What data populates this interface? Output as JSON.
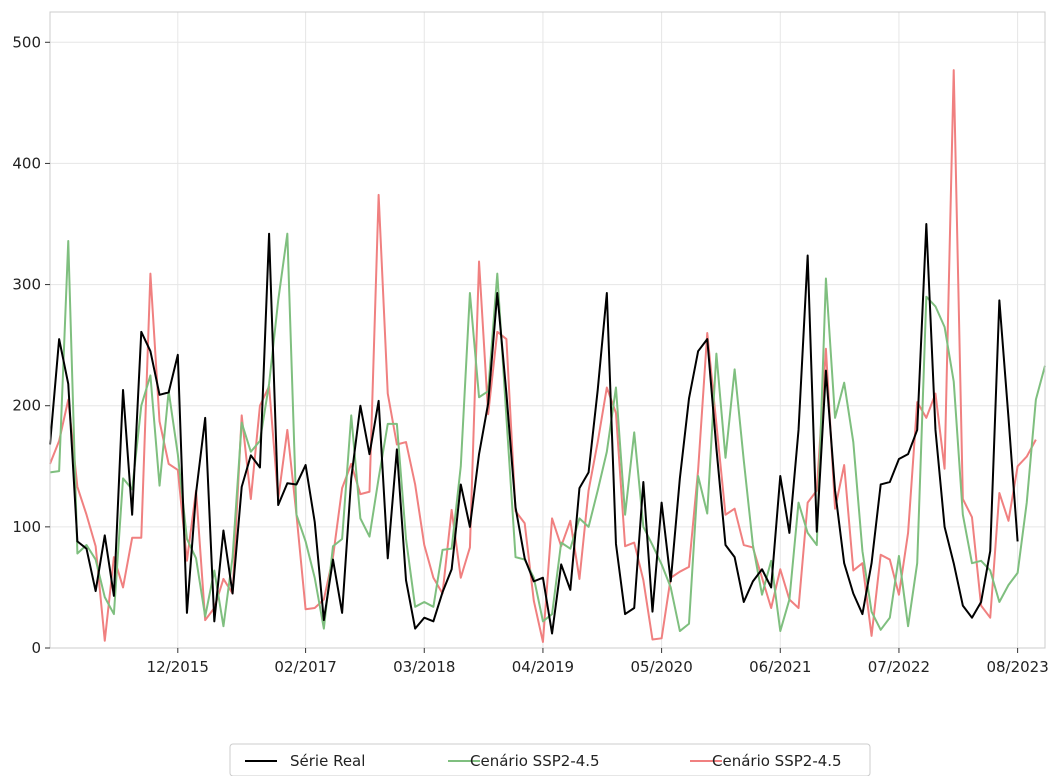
{
  "chart_data": {
    "type": "line",
    "title": "",
    "xlabel": "",
    "ylabel": "",
    "x_start": "2014-10",
    "x_ticks": [
      {
        "label": "12/2015",
        "date": "2015-12"
      },
      {
        "label": "02/2017",
        "date": "2017-02"
      },
      {
        "label": "03/2018",
        "date": "2018-03"
      },
      {
        "label": "04/2019",
        "date": "2019-04"
      },
      {
        "label": "05/2020",
        "date": "2020-05"
      },
      {
        "label": "06/2021",
        "date": "2021-06"
      },
      {
        "label": "07/2022",
        "date": "2022-07"
      },
      {
        "label": "08/2023",
        "date": "2023-08"
      }
    ],
    "y_ticks": [
      0,
      100,
      200,
      300,
      400,
      500
    ],
    "xlim": [
      "2014-10",
      "2023-11"
    ],
    "ylim": [
      0,
      525
    ],
    "grid": true,
    "legend_position": "bottom-center",
    "series": [
      {
        "name": "Série Real",
        "color": "#000000",
        "values": [
          168,
          255,
          218,
          88,
          82,
          47,
          93,
          43,
          213,
          110,
          261,
          245,
          209,
          211,
          242,
          29,
          128,
          190,
          22,
          97,
          45,
          133,
          159,
          149,
          342,
          118,
          136,
          135,
          151,
          104,
          23,
          73,
          29,
          140,
          200,
          160,
          204,
          74,
          164,
          56,
          16,
          25,
          22,
          46,
          65,
          135,
          100,
          160,
          202,
          293,
          210,
          116,
          74,
          55,
          58,
          12,
          69,
          48,
          132,
          145,
          213,
          293,
          86,
          28,
          33,
          137,
          30,
          120,
          55,
          140,
          206,
          245,
          255,
          165,
          85,
          75,
          38,
          55,
          65,
          50,
          142,
          95,
          180,
          324,
          96,
          229,
          130,
          70,
          45,
          28,
          70,
          135,
          137,
          156,
          160,
          180,
          350,
          180,
          100,
          70,
          35,
          25,
          38,
          80,
          287,
          190,
          88
        ]
      },
      {
        "name": "Cenário SSP2-4.5",
        "color": "#7fbf7f",
        "values": [
          145,
          146,
          336,
          78,
          85,
          73,
          42,
          28,
          140,
          131,
          200,
          225,
          134,
          212,
          160,
          90,
          74,
          26,
          64,
          18,
          75,
          186,
          162,
          171,
          218,
          287,
          342,
          110,
          88,
          58,
          16,
          84,
          90,
          192,
          107,
          92,
          140,
          185,
          185,
          90,
          34,
          38,
          34,
          81,
          82,
          150,
          293,
          207,
          212,
          309,
          190,
          75,
          73,
          58,
          22,
          28,
          87,
          82,
          107,
          100,
          130,
          162,
          215,
          110,
          178,
          100,
          85,
          69,
          50,
          14,
          20,
          142,
          111,
          243,
          157,
          230,
          155,
          85,
          44,
          72,
          14,
          40,
          120,
          95,
          85,
          305,
          190,
          219,
          170,
          80,
          30,
          15,
          25,
          76,
          18,
          70,
          290,
          282,
          265,
          220,
          110,
          70,
          72,
          64,
          38,
          52,
          62,
          120,
          205,
          233
        ]
      },
      {
        "name": "Cenário SSP2-4.5",
        "color": "#f08080",
        "values": [
          152,
          171,
          205,
          133,
          110,
          84,
          6,
          75,
          50,
          91,
          91,
          309,
          187,
          152,
          147,
          72,
          130,
          23,
          33,
          57,
          45,
          192,
          123,
          200,
          216,
          123,
          180,
          110,
          32,
          33,
          40,
          75,
          132,
          152,
          127,
          129,
          374,
          210,
          168,
          170,
          135,
          85,
          58,
          45,
          114,
          58,
          83,
          319,
          193,
          261,
          255,
          113,
          103,
          39,
          5,
          107,
          84,
          105,
          57,
          130,
          170,
          215,
          194,
          84,
          87,
          56,
          7,
          8,
          58,
          63,
          67,
          147,
          260,
          185,
          110,
          115,
          85,
          83,
          58,
          33,
          65,
          40,
          33,
          120,
          130,
          247,
          115,
          151,
          64,
          70,
          10,
          77,
          73,
          44,
          95,
          203,
          190,
          210,
          148,
          477,
          123,
          108,
          35,
          25,
          128,
          105,
          150,
          158,
          172
        ]
      }
    ]
  }
}
